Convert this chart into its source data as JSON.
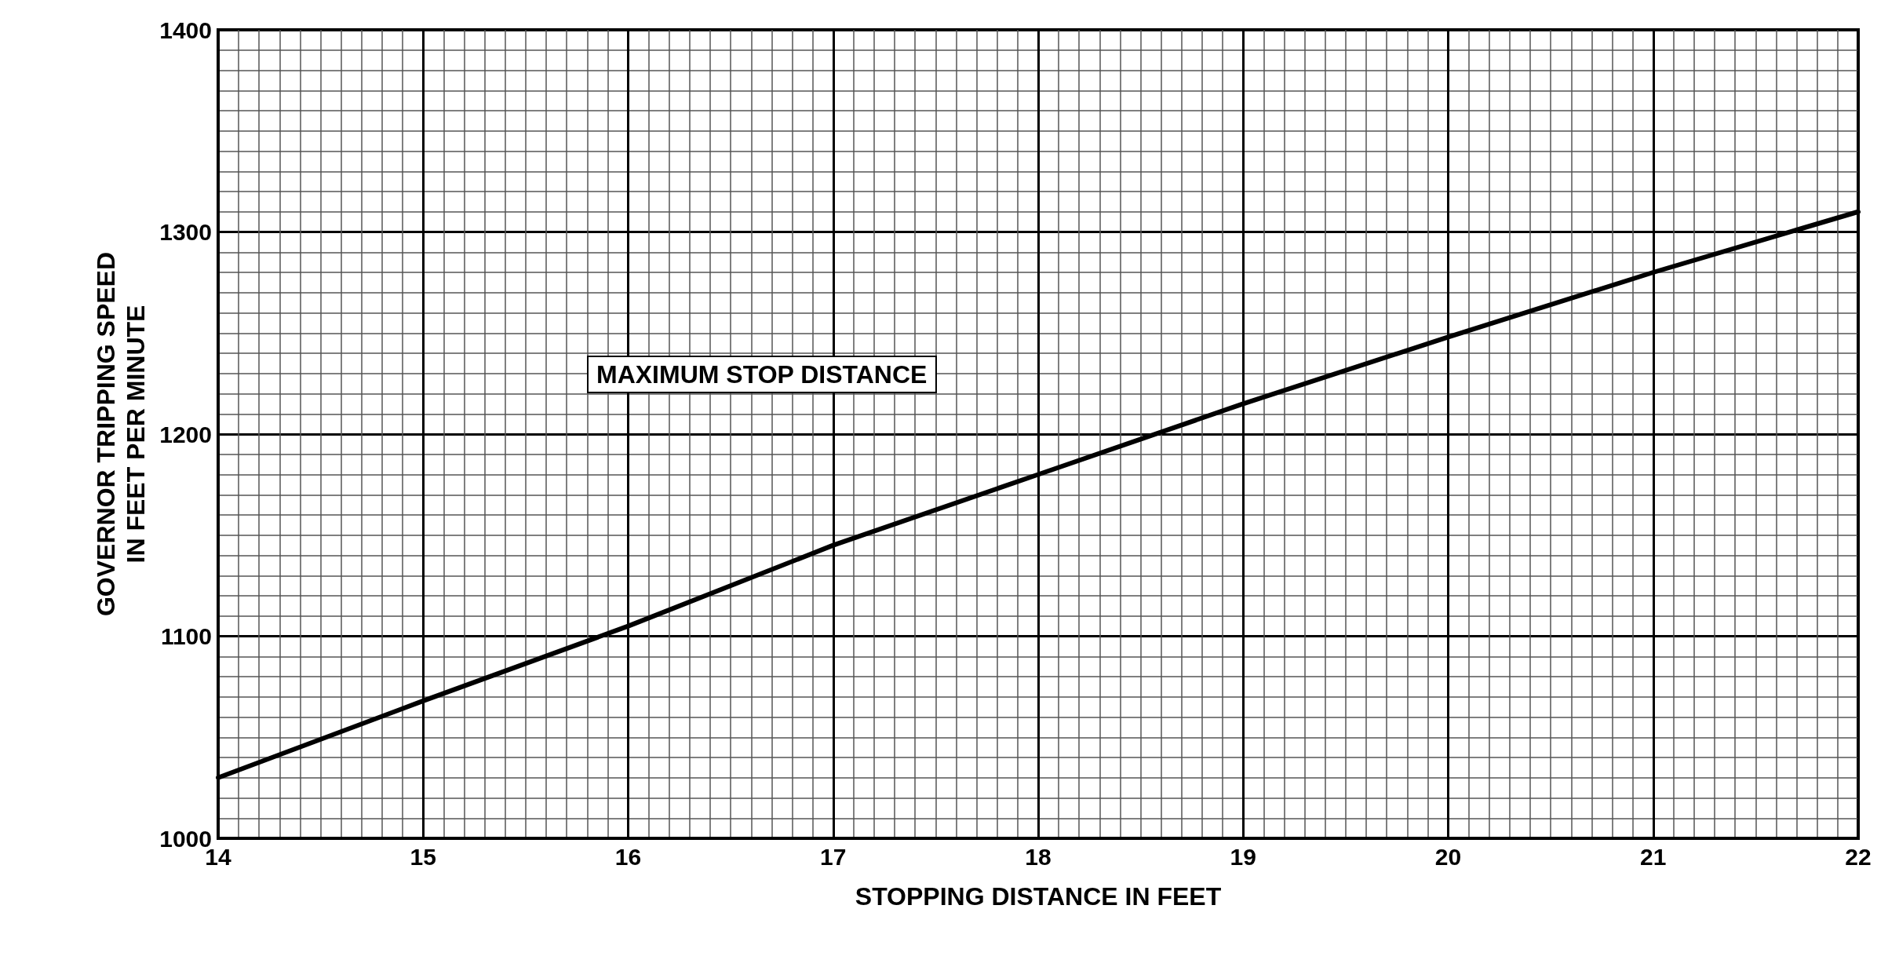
{
  "chart_data": {
    "type": "line",
    "xlabel": "STOPPING DISTANCE IN FEET",
    "ylabel": "GOVERNOR TRIPPING SPEED\nIN FEET PER MINUTE",
    "x": [
      14,
      15,
      16,
      17,
      18,
      19,
      20,
      21,
      22
    ],
    "series": [
      {
        "color": "#000000",
        "values": [
          1030,
          1068,
          1105,
          1145,
          1180,
          1215,
          1248,
          1280,
          1310
        ]
      }
    ],
    "xlim": [
      14,
      22
    ],
    "xticks": [
      14,
      15,
      16,
      17,
      18,
      19,
      20,
      21,
      22
    ],
    "ylim": [
      1000,
      1400
    ],
    "yticks": [
      1000,
      1100,
      1200,
      1300,
      1400
    ],
    "grid": true,
    "marker": "none",
    "line_style": "solid",
    "annotations": [
      "MAXIMUM STOP DISTANCE"
    ]
  }
}
